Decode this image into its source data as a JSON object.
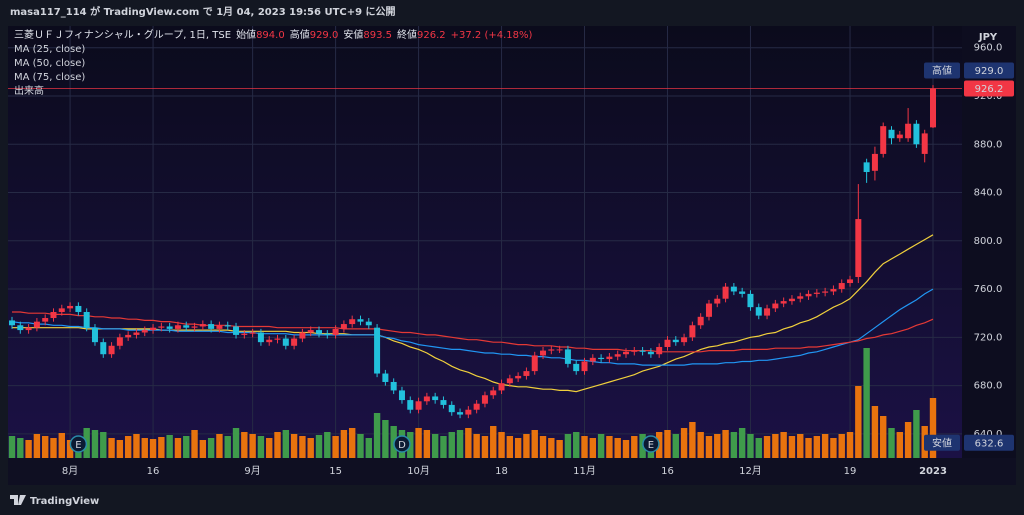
{
  "header": "masa117_114 が TradingView.com で 1月 04, 2023 19:56 UTC+9 に公開",
  "footer": "TradingView",
  "chart_data": {
    "type": "candlestick",
    "title": "三菱ＵＦＪフィナンシャル・グループ, 1日, TSE",
    "ohlc_legend": [
      {
        "name": "始値",
        "label": "894.0"
      },
      {
        "name": "高値",
        "label": "929.0"
      },
      {
        "name": "安値",
        "label": "893.5"
      },
      {
        "name": "終値",
        "label": "926.2"
      }
    ],
    "change": "+37.2 (+4.18%)",
    "currency": "JPY",
    "categories": [
      null,
      null,
      null,
      null,
      null,
      null,
      null,
      "8月",
      null,
      null,
      null,
      null,
      null,
      null,
      null,
      null,
      null,
      "16",
      null,
      null,
      null,
      null,
      null,
      null,
      null,
      null,
      null,
      null,
      null,
      "9月",
      null,
      null,
      null,
      null,
      null,
      null,
      null,
      null,
      null,
      "15",
      null,
      null,
      null,
      null,
      null,
      null,
      null,
      null,
      null,
      "10月",
      null,
      null,
      null,
      null,
      null,
      null,
      null,
      null,
      null,
      "18",
      null,
      null,
      null,
      null,
      null,
      null,
      null,
      null,
      null,
      "11月",
      null,
      null,
      null,
      null,
      null,
      null,
      null,
      null,
      null,
      "16",
      null,
      null,
      null,
      null,
      null,
      null,
      null,
      null,
      null,
      "12月",
      null,
      null,
      null,
      null,
      null,
      null,
      null,
      null,
      null,
      null,
      null,
      "19",
      null,
      null,
      null,
      null,
      null,
      null,
      null,
      null,
      null,
      "2023"
    ],
    "open": [
      734,
      730,
      726,
      728,
      733,
      736,
      741,
      744,
      746,
      741,
      728,
      716,
      706,
      713,
      720,
      722,
      724,
      726,
      728,
      729,
      727,
      730,
      728,
      729,
      731,
      727,
      730,
      729,
      722,
      723,
      724,
      716,
      718,
      719,
      713,
      719,
      724,
      726,
      723,
      722,
      727,
      731,
      735,
      733,
      728,
      690,
      683,
      676,
      668,
      660,
      667,
      671,
      668,
      664,
      658,
      656,
      660,
      665,
      672,
      676,
      682,
      686,
      688,
      692,
      705,
      709,
      710,
      710,
      698,
      692,
      700,
      703,
      702,
      704,
      706,
      708,
      709,
      708,
      706,
      712,
      718,
      716,
      720,
      730,
      737,
      748,
      752,
      762,
      758,
      756,
      745,
      738,
      744,
      748,
      750,
      752,
      754,
      756,
      757,
      758,
      760,
      765,
      770,
      865,
      858,
      872,
      892,
      885,
      885,
      897,
      872,
      894
    ],
    "high": [
      737,
      733,
      731,
      736,
      739,
      744,
      747,
      749,
      749,
      744,
      731,
      719,
      716,
      723,
      725,
      727,
      729,
      731,
      732,
      732,
      733,
      733,
      732,
      734,
      734,
      733,
      733,
      732,
      726,
      727,
      727,
      721,
      722,
      722,
      722,
      727,
      729,
      729,
      726,
      730,
      734,
      738,
      738,
      736,
      731,
      693,
      686,
      679,
      671,
      670,
      674,
      674,
      671,
      667,
      661,
      663,
      668,
      675,
      679,
      685,
      689,
      691,
      695,
      708,
      712,
      713,
      713,
      713,
      701,
      703,
      706,
      706,
      707,
      709,
      711,
      712,
      712,
      711,
      715,
      721,
      721,
      723,
      733,
      740,
      751,
      755,
      765,
      765,
      761,
      759,
      748,
      747,
      751,
      753,
      755,
      757,
      759,
      760,
      761,
      763,
      768,
      771,
      847,
      868,
      878,
      898,
      895,
      891,
      910,
      900,
      892,
      929
    ],
    "low": [
      727,
      723,
      723,
      725,
      730,
      733,
      738,
      741,
      738,
      725,
      713,
      703,
      703,
      710,
      717,
      719,
      721,
      723,
      725,
      724,
      724,
      725,
      725,
      726,
      724,
      724,
      726,
      719,
      719,
      720,
      713,
      713,
      715,
      710,
      710,
      716,
      721,
      720,
      719,
      719,
      724,
      728,
      730,
      727,
      687,
      680,
      673,
      665,
      657,
      657,
      664,
      665,
      661,
      655,
      653,
      653,
      657,
      662,
      669,
      673,
      679,
      683,
      685,
      689,
      702,
      706,
      707,
      695,
      689,
      689,
      697,
      699,
      699,
      701,
      703,
      705,
      705,
      703,
      703,
      709,
      713,
      713,
      717,
      727,
      734,
      745,
      749,
      755,
      753,
      742,
      735,
      735,
      741,
      745,
      747,
      749,
      751,
      753,
      754,
      755,
      757,
      762,
      765,
      848,
      850,
      869,
      880,
      882,
      882,
      877,
      865,
      893.5
    ],
    "close": [
      730,
      726,
      728,
      733,
      736,
      741,
      744,
      746,
      741,
      728,
      716,
      706,
      713,
      720,
      722,
      724,
      726,
      728,
      729,
      727,
      730,
      728,
      729,
      731,
      727,
      730,
      729,
      722,
      723,
      724,
      716,
      718,
      719,
      713,
      719,
      724,
      726,
      723,
      722,
      727,
      731,
      735,
      733,
      730,
      690,
      683,
      676,
      668,
      660,
      667,
      671,
      668,
      664,
      658,
      656,
      660,
      665,
      672,
      676,
      682,
      686,
      688,
      692,
      705,
      709,
      710,
      710,
      698,
      692,
      700,
      703,
      702,
      704,
      706,
      708,
      709,
      708,
      706,
      712,
      718,
      716,
      720,
      730,
      737,
      748,
      752,
      762,
      758,
      756,
      745,
      738,
      744,
      748,
      750,
      752,
      754,
      756,
      757,
      758,
      760,
      765,
      768,
      818,
      857,
      872,
      895,
      885,
      888,
      897,
      880,
      889,
      926.2
    ],
    "up_color": "#f23645",
    "down_color": "#22c1dc",
    "series": [
      {
        "name": "MA (25, close)",
        "color": "#f0d03c",
        "values": [
          728,
          728,
          728,
          728,
          728,
          728,
          728,
          728,
          728,
          727,
          727,
          727,
          727,
          727,
          727,
          727,
          727,
          727,
          726,
          726,
          726,
          726,
          726,
          726,
          726,
          726,
          726,
          725,
          725,
          725,
          725,
          725,
          725,
          725,
          724,
          724,
          724,
          723,
          723,
          723,
          723,
          722,
          722,
          722,
          722,
          720,
          717,
          715,
          712,
          710,
          707,
          703,
          700,
          696,
          693,
          691,
          688,
          686,
          683,
          681,
          680,
          679,
          679,
          678,
          677,
          677,
          676,
          676,
          675,
          677,
          679,
          681,
          683,
          685,
          687,
          689,
          692,
          694,
          696,
          699,
          702,
          704,
          707,
          710,
          712,
          713,
          715,
          716,
          718,
          720,
          721,
          723,
          724,
          727,
          729,
          732,
          734,
          737,
          741,
          745,
          748,
          752,
          759,
          766,
          774,
          781,
          785,
          789,
          793,
          797,
          801,
          805
        ]
      },
      {
        "name": "MA (50, close)",
        "color": "#2196f3",
        "values": [
          733,
          732,
          732,
          731,
          731,
          730,
          730,
          729,
          729,
          728,
          728,
          727,
          727,
          727,
          726,
          726,
          726,
          726,
          726,
          726,
          725,
          725,
          725,
          725,
          725,
          725,
          724,
          724,
          724,
          724,
          723,
          723,
          723,
          723,
          722,
          722,
          722,
          722,
          722,
          722,
          722,
          722,
          722,
          722,
          722,
          720,
          719,
          717,
          716,
          714,
          713,
          712,
          711,
          710,
          710,
          709,
          708,
          707,
          707,
          706,
          706,
          705,
          705,
          704,
          704,
          703,
          703,
          702,
          701,
          701,
          700,
          699,
          699,
          698,
          698,
          698,
          697,
          697,
          697,
          697,
          697,
          697,
          698,
          698,
          698,
          698,
          699,
          699,
          700,
          700,
          701,
          701,
          702,
          703,
          704,
          705,
          707,
          708,
          710,
          712,
          714,
          716,
          718,
          723,
          728,
          733,
          738,
          743,
          747,
          751,
          756,
          760
        ]
      },
      {
        "name": "MA (75, close)",
        "color": "#e53935",
        "values": [
          741,
          741,
          740,
          740,
          740,
          739,
          739,
          739,
          738,
          738,
          737,
          737,
          736,
          736,
          735,
          735,
          734,
          734,
          733,
          733,
          732,
          731,
          731,
          730,
          730,
          730,
          730,
          729,
          729,
          729,
          729,
          729,
          728,
          728,
          728,
          728,
          728,
          728,
          728,
          728,
          727,
          727,
          727,
          727,
          727,
          726,
          725,
          724,
          724,
          723,
          722,
          722,
          721,
          720,
          719,
          718,
          718,
          717,
          716,
          716,
          715,
          714,
          714,
          713,
          713,
          713,
          712,
          712,
          711,
          711,
          710,
          710,
          710,
          710,
          709,
          709,
          709,
          709,
          708,
          708,
          708,
          708,
          708,
          708,
          709,
          709,
          709,
          709,
          710,
          710,
          710,
          710,
          711,
          711,
          711,
          711,
          712,
          712,
          713,
          714,
          715,
          716,
          717,
          719,
          720,
          722,
          723,
          725,
          727,
          730,
          732,
          735
        ]
      }
    ],
    "volume": {
      "name": "出来高",
      "up_color": "#e8730e",
      "down_color": "#3f9b4b",
      "ylim": [
        0,
        130
      ],
      "values": [
        22,
        20,
        18,
        24,
        22,
        20,
        25,
        18,
        22,
        30,
        28,
        26,
        20,
        18,
        22,
        24,
        20,
        19,
        21,
        23,
        20,
        22,
        28,
        18,
        20,
        24,
        22,
        30,
        26,
        24,
        22,
        20,
        26,
        28,
        24,
        22,
        20,
        23,
        26,
        22,
        28,
        30,
        24,
        20,
        45,
        38,
        32,
        28,
        26,
        30,
        28,
        24,
        22,
        26,
        28,
        30,
        24,
        22,
        32,
        26,
        22,
        20,
        24,
        28,
        22,
        20,
        18,
        24,
        26,
        22,
        20,
        24,
        22,
        20,
        18,
        22,
        24,
        20,
        26,
        28,
        24,
        30,
        36,
        26,
        22,
        24,
        28,
        26,
        30,
        24,
        20,
        22,
        24,
        26,
        22,
        24,
        20,
        22,
        24,
        20,
        24,
        26,
        72,
        110,
        52,
        42,
        30,
        26,
        36,
        48,
        32,
        60
      ]
    },
    "ylim": [
      620,
      978
    ],
    "yticks": [
      {
        "value": 640,
        "label": "640.0"
      },
      {
        "value": 680,
        "label": "680.0"
      },
      {
        "value": 720,
        "label": "720.0"
      },
      {
        "value": 760,
        "label": "760.0"
      },
      {
        "value": 800,
        "label": "800.0"
      },
      {
        "value": 840,
        "label": "840.0"
      },
      {
        "value": 880,
        "label": "880.0"
      },
      {
        "value": 920,
        "label": "920.0"
      },
      {
        "value": 960,
        "label": "960.0"
      }
    ],
    "grid": true,
    "price_tags": [
      {
        "name": "高値",
        "value": 929,
        "label": "929.0"
      },
      {
        "value": 926.2,
        "label": "926.2"
      },
      {
        "name": "安値",
        "value": 632.6,
        "label": "632.6"
      }
    ],
    "events": [
      "E",
      "D",
      "E"
    ]
  }
}
